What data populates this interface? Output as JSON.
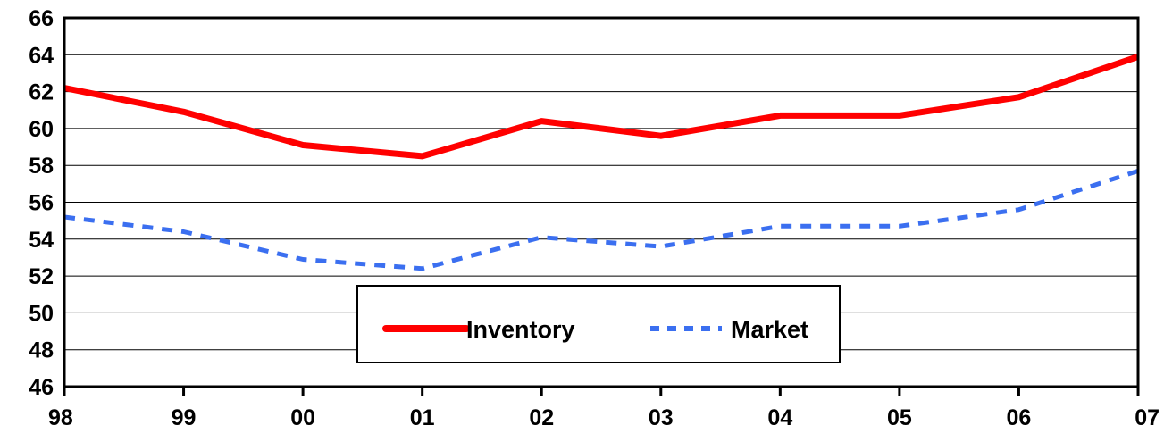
{
  "chart_data": {
    "type": "line",
    "categories": [
      "98",
      "99",
      "00",
      "01",
      "02",
      "03",
      "04",
      "05",
      "06",
      "07"
    ],
    "series": [
      {
        "name": "Inventory",
        "values": [
          62.2,
          60.9,
          59.1,
          58.5,
          60.4,
          59.6,
          60.7,
          60.7,
          61.7,
          63.9
        ],
        "color": "#ff0000",
        "style": "solid"
      },
      {
        "name": "Market",
        "values": [
          55.2,
          54.4,
          52.9,
          52.4,
          54.1,
          53.6,
          54.7,
          54.7,
          55.6,
          57.7
        ],
        "color": "#3b6ff0",
        "style": "dashed"
      }
    ],
    "ylim": [
      46,
      66
    ],
    "yticks": [
      "46",
      "48",
      "50",
      "52",
      "54",
      "56",
      "58",
      "60",
      "62",
      "64",
      "66"
    ],
    "grid": true,
    "legend_position": "bottom-center",
    "title": "",
    "xlabel": "",
    "ylabel": ""
  }
}
